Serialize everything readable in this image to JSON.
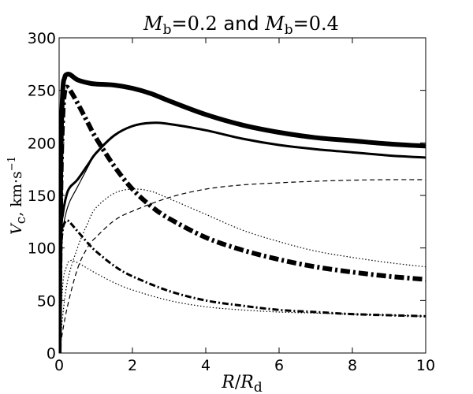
{
  "chart_data": {
    "type": "line",
    "title": "M_b = 0.2 and M_b = 0.4",
    "title_parts": {
      "m1": "M",
      "sub1": "b",
      "eq1": "=0.2",
      "word": " and ",
      "m2": "M",
      "sub2": "b",
      "eq2": "=0.4"
    },
    "xlabel": "R/R_d",
    "xlabel_parts": {
      "r": "R",
      "slash": "/",
      "rd": "R",
      "sub": "d"
    },
    "ylabel": "V_c, km·s^-1",
    "ylabel_parts": {
      "v": "V",
      "sub": "c",
      "rest": ", km·s",
      "sup": "−1"
    },
    "xlim": [
      0,
      10
    ],
    "ylim": [
      0,
      300
    ],
    "xticks": [
      0,
      2,
      4,
      6,
      8,
      10
    ],
    "xtick_labels": [
      "0",
      "2",
      "4",
      "6",
      "8",
      "10"
    ],
    "yticks": [
      0,
      50,
      100,
      150,
      200,
      250,
      300
    ],
    "ytick_labels": [
      "0",
      "50",
      "100",
      "150",
      "200",
      "250",
      "300"
    ],
    "grid": false,
    "series": [
      {
        "style": "solid",
        "width": "thick",
        "x": [
          0,
          0.05,
          0.1,
          0.15,
          0.2,
          0.3,
          0.5,
          0.8,
          1,
          1.5,
          2,
          2.5,
          3,
          4,
          5,
          6,
          7,
          8,
          9,
          10
        ],
        "y": [
          0,
          190,
          250,
          262,
          265,
          265,
          260,
          257,
          256,
          255,
          252,
          247,
          240,
          227,
          217,
          210,
          205,
          202,
          199,
          197
        ]
      },
      {
        "style": "dashdot",
        "width": "thick",
        "x": [
          0,
          0.05,
          0.1,
          0.15,
          0.2,
          0.3,
          0.5,
          0.8,
          1,
          1.5,
          2,
          2.5,
          3,
          4,
          5,
          6,
          7,
          8,
          9,
          10
        ],
        "y": [
          0,
          160,
          225,
          248,
          253,
          250,
          238,
          218,
          205,
          178,
          156,
          140,
          128,
          110,
          98,
          89,
          82,
          77,
          73,
          70
        ]
      },
      {
        "style": "solid",
        "width": "medium",
        "x": [
          0,
          0.05,
          0.1,
          0.2,
          0.3,
          0.5,
          0.8,
          1,
          1.5,
          2,
          2.5,
          3,
          4,
          5,
          6,
          7,
          8,
          9,
          10
        ],
        "y": [
          0,
          110,
          132,
          150,
          158,
          165,
          180,
          190,
          207,
          216,
          219,
          218,
          212,
          204,
          198,
          194,
          191,
          188,
          186
        ]
      },
      {
        "style": "solid",
        "width": "thin",
        "x": [
          0,
          0.05,
          0.1,
          0.2,
          0.3,
          0.5,
          0.8,
          1,
          1.5,
          2,
          2.5,
          3,
          4,
          5,
          6,
          7,
          8,
          9,
          10
        ],
        "y": [
          0,
          100,
          118,
          135,
          145,
          158,
          178,
          190,
          207,
          216,
          219,
          218,
          212,
          204,
          198,
          194,
          191,
          188,
          186
        ]
      },
      {
        "style": "dashdot",
        "width": "medium",
        "x": [
          0,
          0.05,
          0.1,
          0.2,
          0.3,
          0.5,
          0.8,
          1,
          1.5,
          2,
          3,
          4,
          5,
          6,
          7,
          8,
          9,
          10
        ],
        "y": [
          0,
          90,
          118,
          126,
          124,
          116,
          104,
          97,
          83,
          73,
          59,
          50,
          45,
          41,
          39,
          37,
          36,
          35
        ]
      },
      {
        "style": "dotted",
        "width": "thin",
        "x": [
          0,
          0.2,
          0.5,
          0.8,
          1,
          1.5,
          2,
          2.5,
          3,
          4,
          5,
          6,
          7,
          8,
          9,
          10
        ],
        "y": [
          0,
          63,
          100,
          125,
          138,
          152,
          156,
          154,
          147,
          132,
          117,
          106,
          97,
          91,
          86,
          82
        ]
      },
      {
        "style": "dashed",
        "width": "thin",
        "x": [
          0,
          0.2,
          0.5,
          0.8,
          1,
          1.5,
          2,
          3,
          4,
          5,
          6,
          7,
          8,
          9,
          10
        ],
        "y": [
          0,
          40,
          80,
          102,
          110,
          126,
          135,
          148,
          156,
          160,
          162,
          163.5,
          164.5,
          165,
          165
        ]
      },
      {
        "style": "dotted",
        "width": "thin",
        "x": [
          0,
          0.1,
          0.2,
          0.3,
          0.5,
          0.8,
          1,
          1.5,
          2,
          3,
          4,
          5,
          6,
          7,
          8,
          9,
          10
        ],
        "y": [
          0,
          65,
          82,
          88,
          86,
          80,
          76,
          67,
          60,
          50,
          44,
          41,
          39,
          38,
          37,
          36,
          35
        ]
      }
    ]
  }
}
